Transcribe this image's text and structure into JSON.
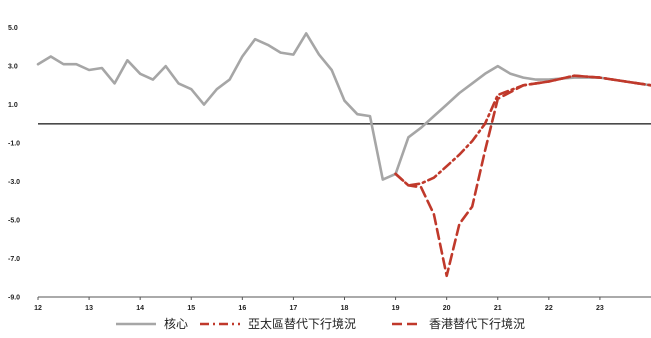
{
  "chart_data": {
    "type": "line",
    "x_ticks": [
      "12",
      "13",
      "14",
      "15",
      "16",
      "17",
      "18",
      "19",
      "20",
      "21",
      "22",
      "23"
    ],
    "y_ticks": [
      "5.0",
      "3.0",
      "1.0",
      "-1.0",
      "-3.0",
      "-5.0",
      "-7.0",
      "-9.0"
    ],
    "xlim": [
      12,
      24
    ],
    "ylim": [
      -9.0,
      5.5
    ],
    "grid": false,
    "legend_position": "bottom",
    "series": [
      {
        "name": "核心",
        "color": "#a6a6a6",
        "style": "solid",
        "points": [
          [
            12.0,
            3.1
          ],
          [
            12.25,
            3.5
          ],
          [
            12.5,
            3.1
          ],
          [
            12.75,
            3.1
          ],
          [
            13.0,
            2.8
          ],
          [
            13.25,
            2.9
          ],
          [
            13.5,
            2.1
          ],
          [
            13.75,
            3.3
          ],
          [
            14.0,
            2.6
          ],
          [
            14.25,
            2.3
          ],
          [
            14.5,
            3.0
          ],
          [
            14.75,
            2.1
          ],
          [
            15.0,
            1.8
          ],
          [
            15.25,
            1.0
          ],
          [
            15.5,
            1.8
          ],
          [
            15.75,
            2.3
          ],
          [
            16.0,
            3.5
          ],
          [
            16.25,
            4.4
          ],
          [
            16.5,
            4.1
          ],
          [
            16.75,
            3.7
          ],
          [
            17.0,
            3.6
          ],
          [
            17.25,
            4.7
          ],
          [
            17.5,
            3.6
          ],
          [
            17.75,
            2.8
          ],
          [
            18.0,
            1.2
          ],
          [
            18.25,
            0.5
          ],
          [
            18.5,
            0.4
          ],
          [
            18.75,
            -2.9
          ],
          [
            19.0,
            -2.6
          ],
          [
            19.25,
            -0.7
          ],
          [
            19.5,
            -0.2
          ],
          [
            19.75,
            0.4
          ],
          [
            20.0,
            1.0
          ],
          [
            20.25,
            1.6
          ],
          [
            20.5,
            2.1
          ],
          [
            20.75,
            2.6
          ],
          [
            21.0,
            3.0
          ],
          [
            21.25,
            2.6
          ],
          [
            21.5,
            2.4
          ],
          [
            21.75,
            2.3
          ],
          [
            22.0,
            2.3
          ],
          [
            22.5,
            2.4
          ],
          [
            23.0,
            2.4
          ],
          [
            23.5,
            2.2
          ],
          [
            24.0,
            2.0
          ]
        ]
      },
      {
        "name": "亞太區替代下行境況",
        "color": "#c0392b",
        "style": "dashdot",
        "points": [
          [
            19.0,
            -2.6
          ],
          [
            19.25,
            -3.2
          ],
          [
            19.5,
            -3.1
          ],
          [
            19.75,
            -2.8
          ],
          [
            20.0,
            -2.2
          ],
          [
            20.25,
            -1.6
          ],
          [
            20.5,
            -0.9
          ],
          [
            20.75,
            0.0
          ],
          [
            21.0,
            1.5
          ],
          [
            21.5,
            2.0
          ],
          [
            22.0,
            2.2
          ],
          [
            22.5,
            2.5
          ],
          [
            23.0,
            2.4
          ],
          [
            23.5,
            2.2
          ],
          [
            24.0,
            2.0
          ]
        ]
      },
      {
        "name": "香港替代下行境況",
        "color": "#c0392b",
        "style": "dashed",
        "points": [
          [
            19.0,
            -2.6
          ],
          [
            19.25,
            -3.2
          ],
          [
            19.5,
            -3.3
          ],
          [
            19.75,
            -4.7
          ],
          [
            20.0,
            -7.9
          ],
          [
            20.25,
            -5.2
          ],
          [
            20.5,
            -4.3
          ],
          [
            20.75,
            -1.4
          ],
          [
            21.0,
            1.3
          ],
          [
            21.5,
            2.0
          ],
          [
            22.0,
            2.2
          ],
          [
            22.5,
            2.5
          ],
          [
            23.0,
            2.4
          ],
          [
            23.5,
            2.2
          ],
          [
            24.0,
            2.0
          ]
        ]
      }
    ]
  }
}
